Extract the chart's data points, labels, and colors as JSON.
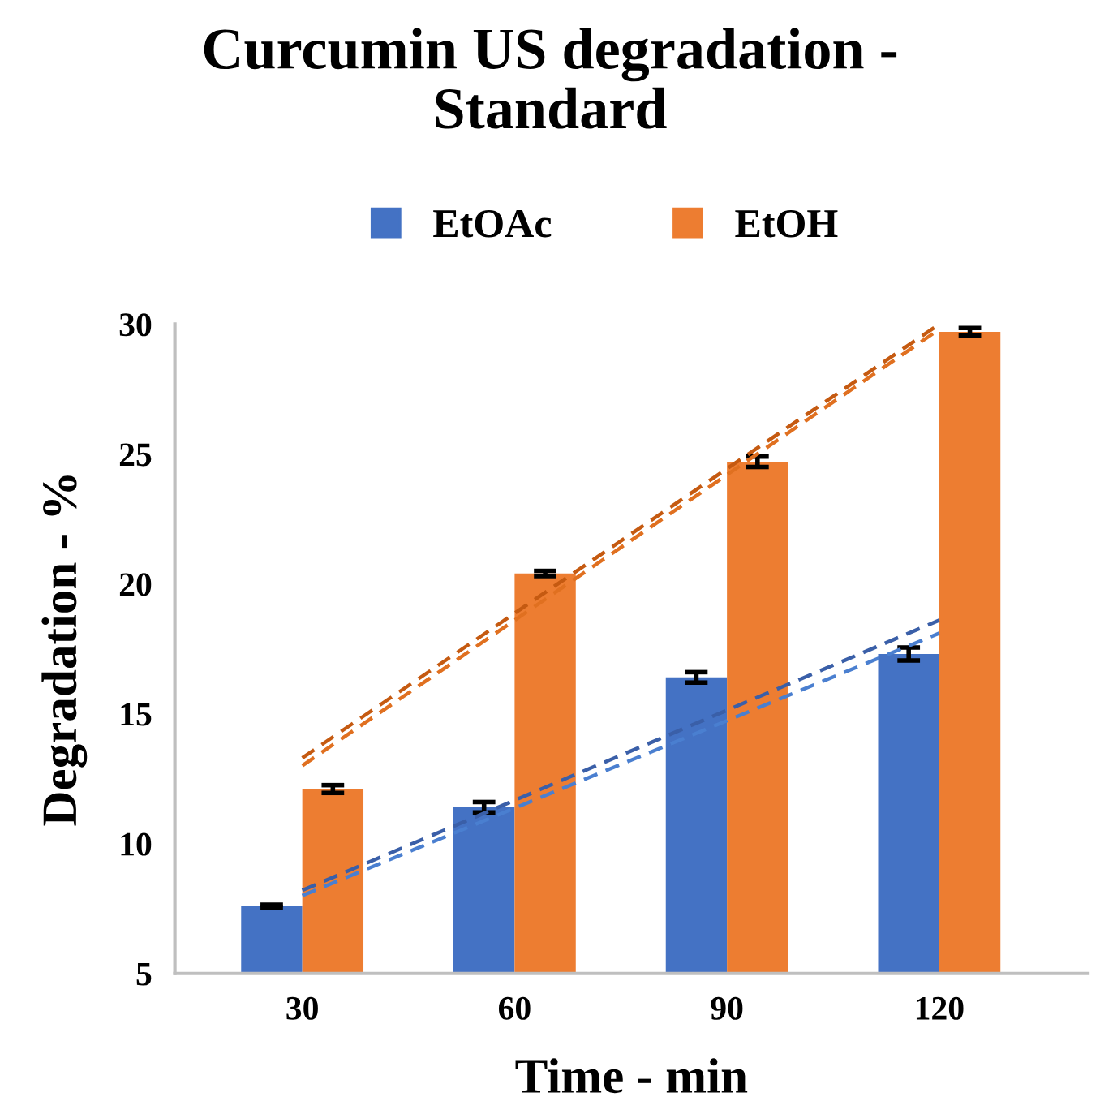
{
  "chart_data": {
    "type": "bar",
    "title": "Curcumin US degradation -\nStandard",
    "xlabel": "Time - min",
    "ylabel": "Degradation - %",
    "categories": [
      "30",
      "60",
      "90",
      "120"
    ],
    "series": [
      {
        "name": "EtOAc",
        "color": "#4472c4",
        "values": [
          7.6,
          11.4,
          16.4,
          17.3
        ],
        "errors": [
          0.05,
          0.2,
          0.2,
          0.25
        ]
      },
      {
        "name": "EtOH",
        "color": "#ed7d31",
        "values": [
          12.1,
          20.4,
          24.7,
          29.7
        ],
        "errors": [
          0.15,
          0.1,
          0.2,
          0.15
        ]
      },
      {
        "type": "line",
        "color": "#3a5fa8",
        "x": [
          "30",
          "120"
        ],
        "values": [
          8.2,
          18.6
        ],
        "line_style": "dashed"
      },
      {
        "type": "line",
        "color": "#4a7fd0",
        "x": [
          "30",
          "120"
        ],
        "values": [
          8.0,
          18.1
        ],
        "line_style": "dashed"
      },
      {
        "type": "line",
        "color": "#c55a11",
        "x": [
          "30",
          "120"
        ],
        "values": [
          13.3,
          30.0
        ],
        "line_style": "dashed"
      },
      {
        "type": "line",
        "color": "#e07020",
        "x": [
          "30",
          "120"
        ],
        "values": [
          13.0,
          29.8
        ],
        "line_style": "dashed"
      }
    ],
    "ylim": [
      5,
      30
    ],
    "yticks": [
      5,
      10,
      15,
      20,
      25,
      30
    ],
    "grid": false,
    "legend": "top"
  }
}
